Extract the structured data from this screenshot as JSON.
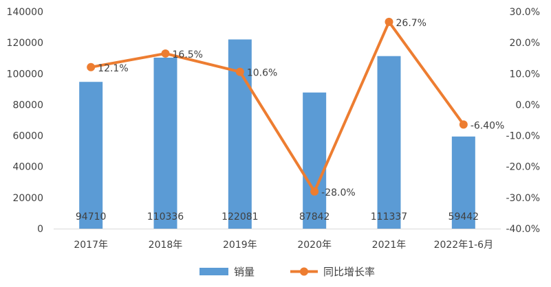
{
  "chart_data": {
    "type": "bar",
    "categories": [
      "2017年",
      "2018年",
      "2019年",
      "2020年",
      "2021年",
      "2022年1-6月"
    ],
    "series": [
      {
        "name": "销量",
        "type": "bar",
        "axis": "left",
        "color": "#5B9BD5",
        "values": [
          94710,
          110336,
          122081,
          87842,
          111337,
          59442
        ],
        "labels": [
          "94710",
          "110336",
          "122081",
          "87842",
          "111337",
          "59442"
        ]
      },
      {
        "name": "同比增长率",
        "type": "line",
        "axis": "right",
        "color": "#ED7D31",
        "values": [
          12.1,
          16.5,
          10.6,
          -28.0,
          26.7,
          -6.4
        ],
        "labels": [
          "12.1%",
          "16.5%",
          "10.6%",
          "-28.0%",
          "26.7%",
          "-6.40%"
        ]
      }
    ],
    "y_left": {
      "min": 0,
      "max": 140000,
      "ticks": [
        "0",
        "20000",
        "40000",
        "60000",
        "80000",
        "100000",
        "120000",
        "140000"
      ]
    },
    "y_right": {
      "min": -40,
      "max": 30,
      "ticks": [
        "-40.0%",
        "-30.0%",
        "-20.0%",
        "-10.0%",
        "0.0%",
        "10.0%",
        "20.0%",
        "30.0%"
      ]
    },
    "grid": false,
    "legend_position": "bottom"
  }
}
